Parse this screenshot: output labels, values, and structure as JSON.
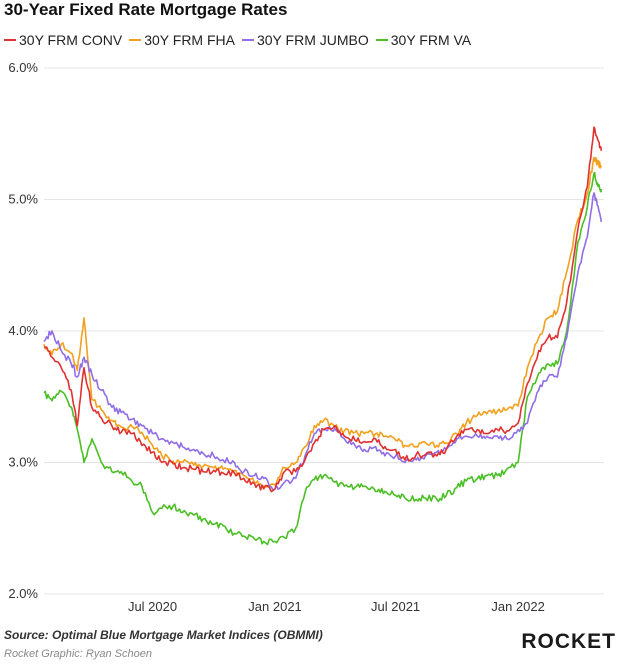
{
  "colors": {
    "conv": "#e0312f",
    "fha": "#f2a01d",
    "jumbo": "#8f6ee8",
    "va": "#4bbf25",
    "grid": "#e4e4e4",
    "axis_text": "#333333"
  },
  "chart_data": {
    "type": "line",
    "title": "30-Year Fixed Rate Mortgage Rates",
    "xlabel": "",
    "ylabel": "",
    "ylim": [
      2.0,
      6.0
    ],
    "xlim": [
      "2020-01-20",
      "2022-05-10"
    ],
    "y_ticks": [
      "2.0%",
      "3.0%",
      "4.0%",
      "5.0%",
      "6.0%"
    ],
    "y_tick_values": [
      2.0,
      3.0,
      4.0,
      5.0,
      6.0
    ],
    "x_ticks": [
      {
        "date": "2020-07-01",
        "label": "Jul 2020"
      },
      {
        "date": "2021-01-01",
        "label": "Jan 2021"
      },
      {
        "date": "2021-07-01",
        "label": "Jul 2021"
      },
      {
        "date": "2022-01-01",
        "label": "Jan 2022"
      }
    ],
    "grid": "horizontal",
    "legend": "top",
    "x": [
      "2020-01-20",
      "2020-02-01",
      "2020-02-15",
      "2020-03-01",
      "2020-03-10",
      "2020-03-20",
      "2020-04-01",
      "2020-04-15",
      "2020-05-01",
      "2020-05-15",
      "2020-06-01",
      "2020-06-15",
      "2020-07-01",
      "2020-07-15",
      "2020-08-01",
      "2020-08-15",
      "2020-09-01",
      "2020-09-15",
      "2020-10-01",
      "2020-10-15",
      "2020-11-01",
      "2020-11-15",
      "2020-12-01",
      "2020-12-15",
      "2021-01-01",
      "2021-01-15",
      "2021-02-01",
      "2021-02-15",
      "2021-03-01",
      "2021-03-15",
      "2021-04-01",
      "2021-04-15",
      "2021-05-01",
      "2021-05-15",
      "2021-06-01",
      "2021-06-15",
      "2021-07-01",
      "2021-07-15",
      "2021-08-01",
      "2021-08-15",
      "2021-09-01",
      "2021-09-15",
      "2021-10-01",
      "2021-10-15",
      "2021-11-01",
      "2021-11-15",
      "2021-12-01",
      "2021-12-15",
      "2022-01-01",
      "2022-01-15",
      "2022-02-01",
      "2022-02-15",
      "2022-03-01",
      "2022-03-15",
      "2022-04-01",
      "2022-04-15",
      "2022-04-25",
      "2022-05-01",
      "2022-05-06"
    ],
    "series": [
      {
        "name": "30Y FRM CONV",
        "key": "conv",
        "values": [
          3.88,
          3.8,
          3.72,
          3.55,
          3.28,
          3.72,
          3.42,
          3.34,
          3.28,
          3.23,
          3.22,
          3.13,
          3.08,
          3.0,
          2.99,
          2.96,
          2.95,
          2.93,
          2.94,
          2.92,
          2.92,
          2.88,
          2.84,
          2.8,
          2.8,
          2.93,
          2.93,
          3.02,
          3.15,
          3.25,
          3.28,
          3.2,
          3.17,
          3.16,
          3.18,
          3.12,
          3.1,
          3.02,
          3.06,
          3.06,
          3.05,
          3.1,
          3.2,
          3.25,
          3.25,
          3.22,
          3.25,
          3.24,
          3.3,
          3.6,
          3.85,
          3.95,
          3.95,
          4.22,
          4.78,
          5.1,
          5.55,
          5.45,
          5.37
        ]
      },
      {
        "name": "30Y FRM FHA",
        "key": "fha",
        "values": [
          3.9,
          3.82,
          3.9,
          3.83,
          3.7,
          4.1,
          3.48,
          3.4,
          3.32,
          3.27,
          3.27,
          3.23,
          3.13,
          3.05,
          3.01,
          3.0,
          2.98,
          2.97,
          2.96,
          2.95,
          2.94,
          2.9,
          2.85,
          2.82,
          2.83,
          2.96,
          3.0,
          3.12,
          3.28,
          3.32,
          3.27,
          3.24,
          3.23,
          3.22,
          3.22,
          3.2,
          3.17,
          3.13,
          3.12,
          3.15,
          3.13,
          3.15,
          3.22,
          3.3,
          3.36,
          3.37,
          3.39,
          3.4,
          3.43,
          3.72,
          3.95,
          4.1,
          4.15,
          4.45,
          4.85,
          5.05,
          5.32,
          5.27,
          5.26
        ]
      },
      {
        "name": "30Y FRM JUMBO",
        "key": "jumbo",
        "values": [
          3.92,
          4.0,
          3.85,
          3.75,
          3.65,
          3.8,
          3.67,
          3.55,
          3.42,
          3.38,
          3.33,
          3.28,
          3.22,
          3.18,
          3.15,
          3.12,
          3.1,
          3.07,
          3.05,
          3.02,
          3.0,
          2.93,
          2.9,
          2.88,
          2.8,
          2.85,
          2.88,
          3.05,
          3.22,
          3.25,
          3.26,
          3.18,
          3.13,
          3.1,
          3.12,
          3.05,
          3.05,
          3.0,
          3.02,
          3.05,
          3.08,
          3.1,
          3.18,
          3.2,
          3.2,
          3.2,
          3.2,
          3.18,
          3.25,
          3.3,
          3.55,
          3.65,
          3.65,
          3.95,
          4.45,
          4.72,
          5.05,
          4.95,
          4.83
        ]
      },
      {
        "name": "30Y FRM VA",
        "key": "va",
        "values": [
          3.53,
          3.47,
          3.54,
          3.42,
          3.25,
          3.0,
          3.18,
          3.0,
          2.93,
          2.93,
          2.85,
          2.82,
          2.62,
          2.65,
          2.67,
          2.62,
          2.6,
          2.57,
          2.53,
          2.52,
          2.46,
          2.44,
          2.42,
          2.4,
          2.4,
          2.43,
          2.5,
          2.77,
          2.87,
          2.9,
          2.85,
          2.82,
          2.81,
          2.82,
          2.78,
          2.78,
          2.75,
          2.73,
          2.72,
          2.73,
          2.72,
          2.75,
          2.81,
          2.86,
          2.88,
          2.9,
          2.9,
          2.95,
          3.0,
          3.5,
          3.68,
          3.75,
          3.75,
          4.0,
          4.68,
          4.95,
          5.2,
          5.1,
          5.08
        ]
      }
    ]
  },
  "footer": {
    "source": "Source: Optimal Blue Mortgage Market Indices (OBMMI)",
    "credit": "Rocket Graphic: Ryan Schoen",
    "brand": "ROCKET"
  }
}
